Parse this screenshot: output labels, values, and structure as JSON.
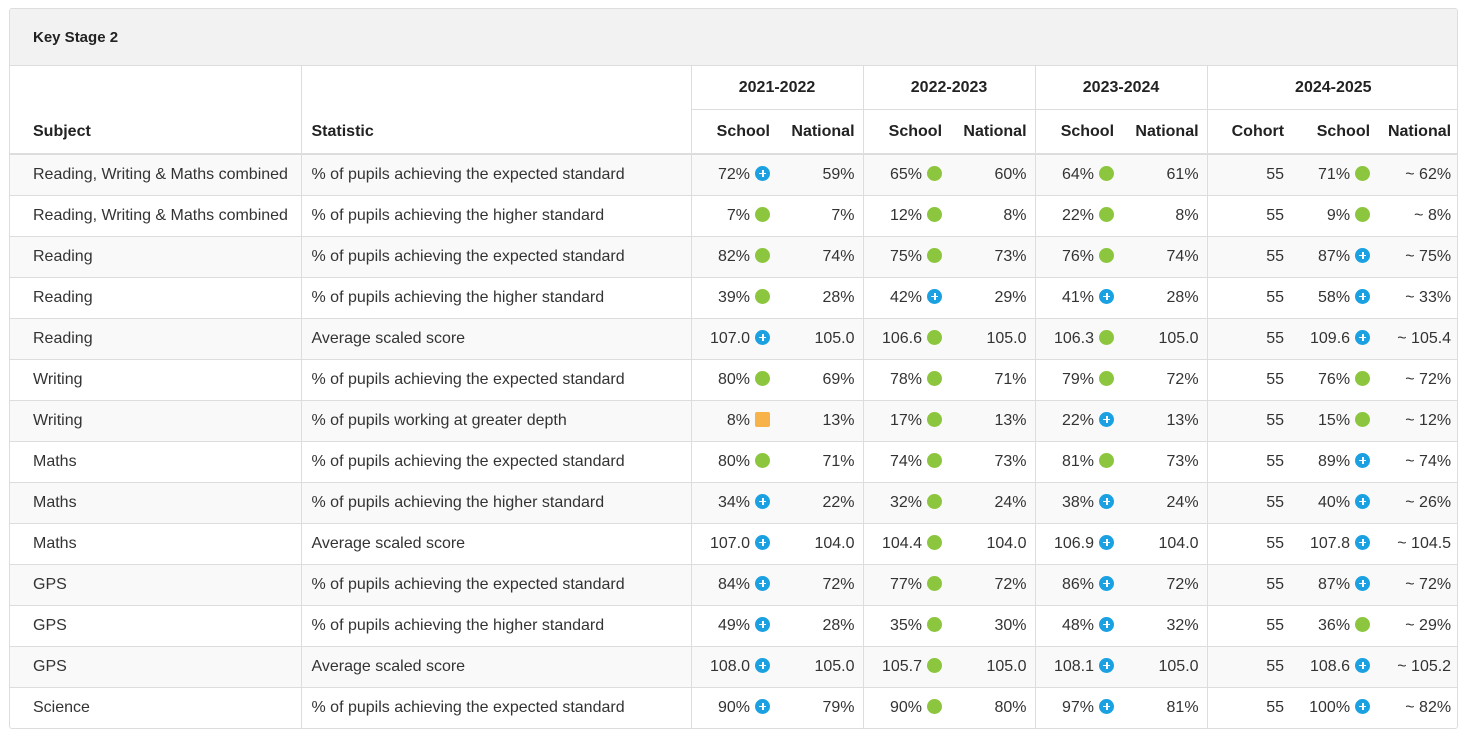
{
  "panel": {
    "title": "Key Stage 2"
  },
  "headers": {
    "subject": "Subject",
    "statistic": "Statistic",
    "years": [
      "2021-2022",
      "2022-2023",
      "2023-2024",
      "2024-2025"
    ],
    "school": "School",
    "national": "National",
    "cohort": "Cohort"
  },
  "indicator_colors": {
    "green": "#8cc63f",
    "blue": "#1ba1e2",
    "orange": "#f7b24a"
  },
  "rows": [
    {
      "subject": "Reading, Writing & Maths combined",
      "statistic": "% of pupils achieving the expected standard",
      "y1": {
        "school": "72%",
        "ind": "blue",
        "national": "59%"
      },
      "y2": {
        "school": "65%",
        "ind": "green",
        "national": "60%"
      },
      "y3": {
        "school": "64%",
        "ind": "green",
        "national": "61%"
      },
      "y4": {
        "cohort": "55",
        "school": "71%",
        "ind": "green",
        "national": "~ 62%"
      }
    },
    {
      "subject": "Reading, Writing & Maths combined",
      "statistic": "% of pupils achieving the higher standard",
      "y1": {
        "school": "7%",
        "ind": "green",
        "national": "7%"
      },
      "y2": {
        "school": "12%",
        "ind": "green",
        "national": "8%"
      },
      "y3": {
        "school": "22%",
        "ind": "green",
        "national": "8%"
      },
      "y4": {
        "cohort": "55",
        "school": "9%",
        "ind": "green",
        "national": "~ 8%"
      }
    },
    {
      "subject": "Reading",
      "statistic": "% of pupils achieving the expected standard",
      "y1": {
        "school": "82%",
        "ind": "green",
        "national": "74%"
      },
      "y2": {
        "school": "75%",
        "ind": "green",
        "national": "73%"
      },
      "y3": {
        "school": "76%",
        "ind": "green",
        "national": "74%"
      },
      "y4": {
        "cohort": "55",
        "school": "87%",
        "ind": "blue",
        "national": "~ 75%"
      }
    },
    {
      "subject": "Reading",
      "statistic": "% of pupils achieving the higher standard",
      "y1": {
        "school": "39%",
        "ind": "green",
        "national": "28%"
      },
      "y2": {
        "school": "42%",
        "ind": "blue",
        "national": "29%"
      },
      "y3": {
        "school": "41%",
        "ind": "blue",
        "national": "28%"
      },
      "y4": {
        "cohort": "55",
        "school": "58%",
        "ind": "blue",
        "national": "~ 33%"
      }
    },
    {
      "subject": "Reading",
      "statistic": "Average scaled score",
      "y1": {
        "school": "107.0",
        "ind": "blue",
        "national": "105.0"
      },
      "y2": {
        "school": "106.6",
        "ind": "green",
        "national": "105.0"
      },
      "y3": {
        "school": "106.3",
        "ind": "green",
        "national": "105.0"
      },
      "y4": {
        "cohort": "55",
        "school": "109.6",
        "ind": "blue",
        "national": "~ 105.4"
      }
    },
    {
      "subject": "Writing",
      "statistic": "% of pupils achieving the expected standard",
      "y1": {
        "school": "80%",
        "ind": "green",
        "national": "69%"
      },
      "y2": {
        "school": "78%",
        "ind": "green",
        "national": "71%"
      },
      "y3": {
        "school": "79%",
        "ind": "green",
        "national": "72%"
      },
      "y4": {
        "cohort": "55",
        "school": "76%",
        "ind": "green",
        "national": "~ 72%"
      }
    },
    {
      "subject": "Writing",
      "statistic": "% of pupils working at greater depth",
      "y1": {
        "school": "8%",
        "ind": "orange",
        "national": "13%"
      },
      "y2": {
        "school": "17%",
        "ind": "green",
        "national": "13%"
      },
      "y3": {
        "school": "22%",
        "ind": "blue",
        "national": "13%"
      },
      "y4": {
        "cohort": "55",
        "school": "15%",
        "ind": "green",
        "national": "~ 12%"
      }
    },
    {
      "subject": "Maths",
      "statistic": "% of pupils achieving the expected standard",
      "y1": {
        "school": "80%",
        "ind": "green",
        "national": "71%"
      },
      "y2": {
        "school": "74%",
        "ind": "green",
        "national": "73%"
      },
      "y3": {
        "school": "81%",
        "ind": "green",
        "national": "73%"
      },
      "y4": {
        "cohort": "55",
        "school": "89%",
        "ind": "blue",
        "national": "~ 74%"
      }
    },
    {
      "subject": "Maths",
      "statistic": "% of pupils achieving the higher standard",
      "y1": {
        "school": "34%",
        "ind": "blue",
        "national": "22%"
      },
      "y2": {
        "school": "32%",
        "ind": "green",
        "national": "24%"
      },
      "y3": {
        "school": "38%",
        "ind": "blue",
        "national": "24%"
      },
      "y4": {
        "cohort": "55",
        "school": "40%",
        "ind": "blue",
        "national": "~ 26%"
      }
    },
    {
      "subject": "Maths",
      "statistic": "Average scaled score",
      "y1": {
        "school": "107.0",
        "ind": "blue",
        "national": "104.0"
      },
      "y2": {
        "school": "104.4",
        "ind": "green",
        "national": "104.0"
      },
      "y3": {
        "school": "106.9",
        "ind": "blue",
        "national": "104.0"
      },
      "y4": {
        "cohort": "55",
        "school": "107.8",
        "ind": "blue",
        "national": "~ 104.5"
      }
    },
    {
      "subject": "GPS",
      "statistic": "% of pupils achieving the expected standard",
      "y1": {
        "school": "84%",
        "ind": "blue",
        "national": "72%"
      },
      "y2": {
        "school": "77%",
        "ind": "green",
        "national": "72%"
      },
      "y3": {
        "school": "86%",
        "ind": "blue",
        "national": "72%"
      },
      "y4": {
        "cohort": "55",
        "school": "87%",
        "ind": "blue",
        "national": "~ 72%"
      }
    },
    {
      "subject": "GPS",
      "statistic": "% of pupils achieving the higher standard",
      "y1": {
        "school": "49%",
        "ind": "blue",
        "national": "28%"
      },
      "y2": {
        "school": "35%",
        "ind": "green",
        "national": "30%"
      },
      "y3": {
        "school": "48%",
        "ind": "blue",
        "national": "32%"
      },
      "y4": {
        "cohort": "55",
        "school": "36%",
        "ind": "green",
        "national": "~ 29%"
      }
    },
    {
      "subject": "GPS",
      "statistic": "Average scaled score",
      "y1": {
        "school": "108.0",
        "ind": "blue",
        "national": "105.0"
      },
      "y2": {
        "school": "105.7",
        "ind": "green",
        "national": "105.0"
      },
      "y3": {
        "school": "108.1",
        "ind": "blue",
        "national": "105.0"
      },
      "y4": {
        "cohort": "55",
        "school": "108.6",
        "ind": "blue",
        "national": "~ 105.2"
      }
    },
    {
      "subject": "Science",
      "statistic": "% of pupils achieving the expected standard",
      "y1": {
        "school": "90%",
        "ind": "blue",
        "national": "79%"
      },
      "y2": {
        "school": "90%",
        "ind": "green",
        "national": "80%"
      },
      "y3": {
        "school": "97%",
        "ind": "blue",
        "national": "81%"
      },
      "y4": {
        "cohort": "55",
        "school": "100%",
        "ind": "blue",
        "national": "~ 82%"
      }
    }
  ]
}
